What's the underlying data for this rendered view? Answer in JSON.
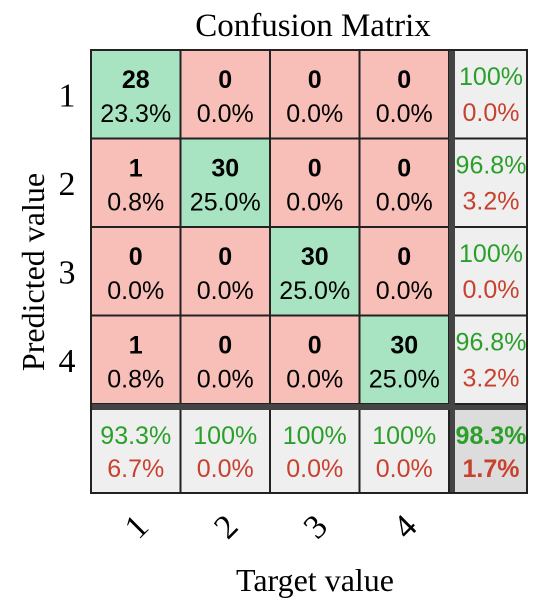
{
  "chart_data": {
    "type": "heatmap",
    "title": "Confusion Matrix",
    "xlabel": "Target value",
    "ylabel": "Predicted value",
    "x_categories": [
      "1",
      "2",
      "3",
      "4"
    ],
    "y_categories": [
      "1",
      "2",
      "3",
      "4"
    ],
    "matrix": [
      [
        {
          "count": "28",
          "pct": "23.3%"
        },
        {
          "count": "0",
          "pct": "0.0%"
        },
        {
          "count": "0",
          "pct": "0.0%"
        },
        {
          "count": "0",
          "pct": "0.0%"
        }
      ],
      [
        {
          "count": "1",
          "pct": "0.8%"
        },
        {
          "count": "30",
          "pct": "25.0%"
        },
        {
          "count": "0",
          "pct": "0.0%"
        },
        {
          "count": "0",
          "pct": "0.0%"
        }
      ],
      [
        {
          "count": "0",
          "pct": "0.0%"
        },
        {
          "count": "0",
          "pct": "0.0%"
        },
        {
          "count": "30",
          "pct": "25.0%"
        },
        {
          "count": "0",
          "pct": "0.0%"
        }
      ],
      [
        {
          "count": "1",
          "pct": "0.8%"
        },
        {
          "count": "0",
          "pct": "0.0%"
        },
        {
          "count": "0",
          "pct": "0.0%"
        },
        {
          "count": "30",
          "pct": "25.0%"
        }
      ]
    ],
    "row_summary": [
      {
        "correct": "100%",
        "error": "0.0%"
      },
      {
        "correct": "96.8%",
        "error": "3.2%"
      },
      {
        "correct": "100%",
        "error": "0.0%"
      },
      {
        "correct": "96.8%",
        "error": "3.2%"
      }
    ],
    "col_summary": [
      {
        "correct": "93.3%",
        "error": "6.7%"
      },
      {
        "correct": "100%",
        "error": "0.0%"
      },
      {
        "correct": "100%",
        "error": "0.0%"
      },
      {
        "correct": "100%",
        "error": "0.0%"
      }
    ],
    "overall": {
      "correct": "98.3%",
      "error": "1.7%"
    }
  },
  "colors": {
    "diagonal": "#a8e4c1",
    "offdiagonal": "#f8bfb8",
    "summary": "#efefef",
    "overall": "#dcdcdc",
    "correct_text": "#2aa02a",
    "error_text": "#c8412e",
    "cell_text": "#000000",
    "grid": "#222222"
  }
}
